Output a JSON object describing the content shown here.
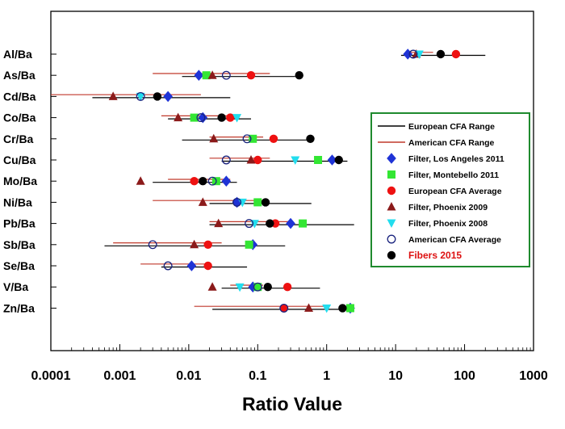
{
  "chart_data": {
    "type": "scatter",
    "xlabel": "Ratio Value",
    "x_scale": "log",
    "xlim": [
      0.0001,
      1000
    ],
    "x_ticks": [
      "0.0001",
      "0.001",
      "0.01",
      "0.1",
      "1",
      "10",
      "100",
      "1000"
    ],
    "categories": [
      "Al/Ba",
      "As/Ba",
      "Cd/Ba",
      "Co/Ba",
      "Cr/Ba",
      "Cu/Ba",
      "Mo/Ba",
      "Ni/Ba",
      "Pb/Ba",
      "Sb/Ba",
      "Se/Ba",
      "V/Ba",
      "Zn/Ba"
    ],
    "ranges": [
      {
        "name": "European CFA Range",
        "color": "#000000",
        "values": [
          [
            12,
            200
          ],
          [
            0.008,
            0.35
          ],
          [
            0.0004,
            0.04
          ],
          [
            0.005,
            0.08
          ],
          [
            0.008,
            0.65
          ],
          [
            0.03,
            2.0
          ],
          [
            0.003,
            0.05
          ],
          [
            0.02,
            0.6
          ],
          [
            0.02,
            2.5
          ],
          [
            0.0006,
            0.25
          ],
          [
            0.004,
            0.07
          ],
          [
            0.03,
            0.8
          ],
          [
            0.022,
            2.2
          ]
        ]
      },
      {
        "name": "American CFA Range",
        "color": "#c0392b",
        "values": [
          [
            15,
            35
          ],
          [
            0.003,
            0.15
          ],
          [
            0.0001,
            0.015
          ],
          [
            0.004,
            0.05
          ],
          [
            0.02,
            0.12
          ],
          [
            0.02,
            0.15
          ],
          [
            0.005,
            0.04
          ],
          [
            0.003,
            0.12
          ],
          [
            0.02,
            0.3
          ],
          [
            0.0008,
            0.03
          ],
          [
            0.002,
            0.02
          ],
          [
            0.04,
            0.12
          ],
          [
            0.012,
            1.0
          ]
        ]
      }
    ],
    "series": [
      {
        "name": "Filter, Los Angeles 2011",
        "marker": "diamond",
        "color": "#1f33d6",
        "values": [
          15,
          0.014,
          0.005,
          0.016,
          null,
          1.2,
          0.035,
          0.05,
          0.3,
          0.085,
          0.011,
          0.085,
          2.2
        ]
      },
      {
        "name": "Filter, Montebello 2011",
        "marker": "square",
        "color": "#33e633",
        "values": [
          null,
          0.018,
          null,
          0.012,
          0.085,
          0.75,
          0.025,
          0.1,
          0.45,
          0.075,
          null,
          0.1,
          2.2
        ]
      },
      {
        "name": "European CFA Average",
        "marker": "circle",
        "color": "#ee1111",
        "values": [
          75,
          0.08,
          null,
          0.04,
          0.17,
          0.1,
          0.012,
          null,
          0.18,
          0.019,
          0.019,
          0.27,
          0.24
        ]
      },
      {
        "name": "Filter, Phoenix 2009",
        "marker": "triangle-up",
        "color": "#8b1a1a",
        "values": [
          20,
          0.022,
          0.0008,
          0.007,
          0.023,
          0.08,
          0.002,
          0.016,
          0.027,
          0.012,
          null,
          0.022,
          0.55
        ]
      },
      {
        "name": "Filter, Phoenix 2008",
        "marker": "triangle-down",
        "color": "#22ddee",
        "values": [
          22,
          null,
          0.002,
          0.05,
          null,
          0.35,
          null,
          0.06,
          0.09,
          null,
          null,
          0.055,
          1.0
        ]
      },
      {
        "name": "American CFA Average",
        "marker": "open-circle",
        "color": "#1a237e",
        "values": [
          18,
          0.035,
          0.002,
          0.015,
          0.07,
          0.035,
          0.022,
          0.05,
          0.075,
          0.003,
          0.005,
          0.1,
          0.24
        ]
      },
      {
        "name": "Fibers 2015",
        "marker": "circle",
        "color": "#000000",
        "values": [
          45,
          0.4,
          0.0035,
          0.03,
          0.58,
          1.5,
          0.016,
          0.13,
          0.15,
          null,
          null,
          0.14,
          1.7
        ]
      }
    ],
    "legend": {
      "placement": "right",
      "highlight_entry": "Fibers 2015",
      "highlight_color": "#dd1111",
      "border_color": "#1f8a2e"
    },
    "grid": false
  }
}
